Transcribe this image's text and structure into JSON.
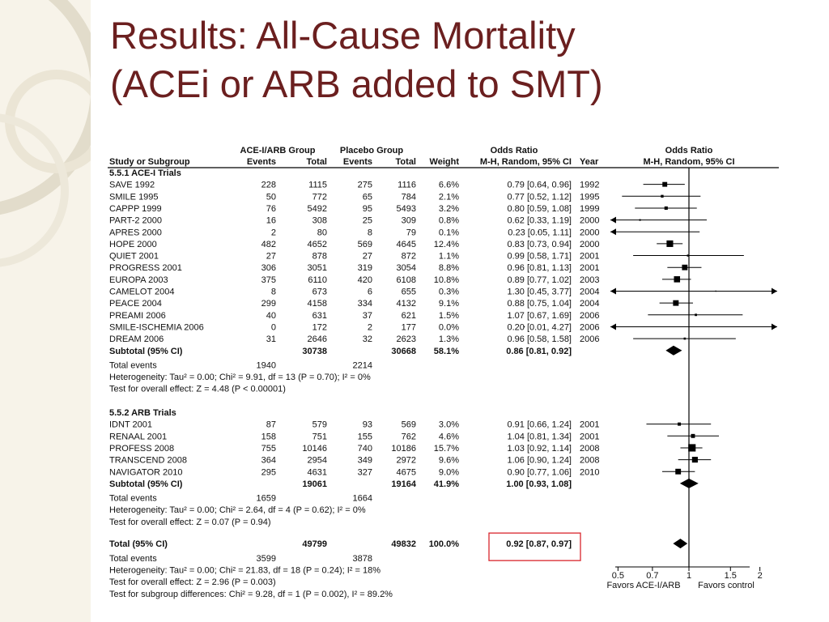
{
  "slide": {
    "title_line1": "Results: All-Cause Mortality",
    "title_line2": "(ACEi or ARB added to SMT)"
  },
  "colors": {
    "title": "#6b1f1f",
    "sidebar": "#f7f3e9",
    "deco_ring": "#e2dccb",
    "highlight_box": "#d9262c"
  },
  "headers": {
    "group1": "ACE-I/ARB Group",
    "group2": "Placebo Group",
    "or_col": "Odds Ratio",
    "plot_col": "Odds Ratio",
    "study": "Study or Subgroup",
    "events1": "Events",
    "total1": "Total",
    "events2": "Events",
    "total2": "Total",
    "weight": "Weight",
    "method": "M-H, Random, 95% CI",
    "year": "Year",
    "plot_method": "M-H, Random, 95% CI"
  },
  "chart_data": {
    "type": "forest",
    "axis": {
      "scale": "log",
      "xlim": [
        0.4,
        2.2
      ],
      "ticks": [
        "0.5",
        "0.7",
        "1",
        "1.5",
        "2"
      ],
      "reference_line": 1
    },
    "favors_left": "Favors ACE-I/ARB",
    "favors_right": "Favors control",
    "subgroups": [
      {
        "label": "5.5.1 ACE-I Trials",
        "studies": [
          {
            "name": "SAVE 1992",
            "e1": "228",
            "t1": "1115",
            "e2": "275",
            "t2": "1116",
            "weight": "6.6%",
            "ci": "0.79 [0.64, 0.96]",
            "year": "1992",
            "or": 0.79,
            "lo": 0.64,
            "hi": 0.96,
            "w": 6.6
          },
          {
            "name": "SMILE 1995",
            "e1": "50",
            "t1": "772",
            "e2": "65",
            "t2": "784",
            "weight": "2.1%",
            "ci": "0.77 [0.52, 1.12]",
            "year": "1995",
            "or": 0.77,
            "lo": 0.52,
            "hi": 1.12,
            "w": 2.1
          },
          {
            "name": "CAPPP 1999",
            "e1": "76",
            "t1": "5492",
            "e2": "95",
            "t2": "5493",
            "weight": "3.2%",
            "ci": "0.80 [0.59, 1.08]",
            "year": "1999",
            "or": 0.8,
            "lo": 0.59,
            "hi": 1.08,
            "w": 3.2
          },
          {
            "name": "PART-2 2000",
            "e1": "16",
            "t1": "308",
            "e2": "25",
            "t2": "309",
            "weight": "0.8%",
            "ci": "0.62 [0.33, 1.19]",
            "year": "2000",
            "or": 0.62,
            "lo": 0.33,
            "hi": 1.19,
            "w": 0.8
          },
          {
            "name": "APRES 2000",
            "e1": "2",
            "t1": "80",
            "e2": "8",
            "t2": "79",
            "weight": "0.1%",
            "ci": "0.23 [0.05, 1.11]",
            "year": "2000",
            "or": 0.23,
            "lo": 0.05,
            "hi": 1.11,
            "w": 0.1
          },
          {
            "name": "HOPE 2000",
            "e1": "482",
            "t1": "4652",
            "e2": "569",
            "t2": "4645",
            "weight": "12.4%",
            "ci": "0.83 [0.73, 0.94]",
            "year": "2000",
            "or": 0.83,
            "lo": 0.73,
            "hi": 0.94,
            "w": 12.4
          },
          {
            "name": "QUIET 2001",
            "e1": "27",
            "t1": "878",
            "e2": "27",
            "t2": "872",
            "weight": "1.1%",
            "ci": "0.99 [0.58, 1.71]",
            "year": "2001",
            "or": 0.99,
            "lo": 0.58,
            "hi": 1.71,
            "w": 1.1
          },
          {
            "name": "PROGRESS 2001",
            "e1": "306",
            "t1": "3051",
            "e2": "319",
            "t2": "3054",
            "weight": "8.8%",
            "ci": "0.96 [0.81, 1.13]",
            "year": "2001",
            "or": 0.96,
            "lo": 0.81,
            "hi": 1.13,
            "w": 8.8
          },
          {
            "name": "EUROPA 2003",
            "e1": "375",
            "t1": "6110",
            "e2": "420",
            "t2": "6108",
            "weight": "10.8%",
            "ci": "0.89 [0.77, 1.02]",
            "year": "2003",
            "or": 0.89,
            "lo": 0.77,
            "hi": 1.02,
            "w": 10.8
          },
          {
            "name": "CAMELOT 2004",
            "e1": "8",
            "t1": "673",
            "e2": "6",
            "t2": "655",
            "weight": "0.3%",
            "ci": "1.30 [0.45, 3.77]",
            "year": "2004",
            "or": 1.3,
            "lo": 0.45,
            "hi": 3.77,
            "w": 0.3
          },
          {
            "name": "PEACE 2004",
            "e1": "299",
            "t1": "4158",
            "e2": "334",
            "t2": "4132",
            "weight": "9.1%",
            "ci": "0.88 [0.75, 1.04]",
            "year": "2004",
            "or": 0.88,
            "lo": 0.75,
            "hi": 1.04,
            "w": 9.1
          },
          {
            "name": "PREAMI 2006",
            "e1": "40",
            "t1": "631",
            "e2": "37",
            "t2": "621",
            "weight": "1.5%",
            "ci": "1.07 [0.67, 1.69]",
            "year": "2006",
            "or": 1.07,
            "lo": 0.67,
            "hi": 1.69,
            "w": 1.5
          },
          {
            "name": "SMILE-ISCHEMIA 2006",
            "e1": "0",
            "t1": "172",
            "e2": "2",
            "t2": "177",
            "weight": "0.0%",
            "ci": "0.20 [0.01, 4.27]",
            "year": "2006",
            "or": 0.2,
            "lo": 0.01,
            "hi": 4.27,
            "w": 0.0
          },
          {
            "name": "DREAM 2006",
            "e1": "31",
            "t1": "2646",
            "e2": "32",
            "t2": "2623",
            "weight": "1.3%",
            "ci": "0.96 [0.58, 1.58]",
            "year": "2006",
            "or": 0.96,
            "lo": 0.58,
            "hi": 1.58,
            "w": 1.3
          }
        ],
        "subtotal": {
          "label": "Subtotal (95% CI)",
          "t1": "30738",
          "t2": "30668",
          "weight": "58.1%",
          "ci": "0.86 [0.81, 0.92]",
          "or": 0.86,
          "lo": 0.81,
          "hi": 0.92
        },
        "events": {
          "label": "Total events",
          "e1": "1940",
          "e2": "2214"
        },
        "heterogeneity": "Heterogeneity: Tau² = 0.00; Chi² = 9.91, df = 13 (P = 0.70); I² = 0%",
        "overall": "Test for overall effect: Z = 4.48 (P < 0.00001)"
      },
      {
        "label": "5.5.2 ARB Trials",
        "studies": [
          {
            "name": "IDNT 2001",
            "e1": "87",
            "t1": "579",
            "e2": "93",
            "t2": "569",
            "weight": "3.0%",
            "ci": "0.91 [0.66, 1.24]",
            "year": "2001",
            "or": 0.91,
            "lo": 0.66,
            "hi": 1.24,
            "w": 3.0
          },
          {
            "name": "RENAAL 2001",
            "e1": "158",
            "t1": "751",
            "e2": "155",
            "t2": "762",
            "weight": "4.6%",
            "ci": "1.04 [0.81, 1.34]",
            "year": "2001",
            "or": 1.04,
            "lo": 0.81,
            "hi": 1.34,
            "w": 4.6
          },
          {
            "name": "PROFESS 2008",
            "e1": "755",
            "t1": "10146",
            "e2": "740",
            "t2": "10186",
            "weight": "15.7%",
            "ci": "1.03 [0.92, 1.14]",
            "year": "2008",
            "or": 1.03,
            "lo": 0.92,
            "hi": 1.14,
            "w": 15.7
          },
          {
            "name": "TRANSCEND 2008",
            "e1": "364",
            "t1": "2954",
            "e2": "349",
            "t2": "2972",
            "weight": "9.6%",
            "ci": "1.06 [0.90, 1.24]",
            "year": "2008",
            "or": 1.06,
            "lo": 0.9,
            "hi": 1.24,
            "w": 9.6
          },
          {
            "name": "NAVIGATOR 2010",
            "e1": "295",
            "t1": "4631",
            "e2": "327",
            "t2": "4675",
            "weight": "9.0%",
            "ci": "0.90 [0.77, 1.06]",
            "year": "2010",
            "or": 0.9,
            "lo": 0.77,
            "hi": 1.06,
            "w": 9.0
          }
        ],
        "subtotal": {
          "label": "Subtotal (95% CI)",
          "t1": "19061",
          "t2": "19164",
          "weight": "41.9%",
          "ci": "1.00 [0.93, 1.08]",
          "or": 1.0,
          "lo": 0.93,
          "hi": 1.08
        },
        "events": {
          "label": "Total events",
          "e1": "1659",
          "e2": "1664"
        },
        "heterogeneity": "Heterogeneity: Tau² = 0.00; Chi² = 2.64, df = 4 (P = 0.62); I² = 0%",
        "overall": "Test for overall effect: Z = 0.07 (P = 0.94)"
      }
    ],
    "total": {
      "label": "Total (95% CI)",
      "t1": "49799",
      "t2": "49832",
      "weight": "100.0%",
      "ci": "0.92 [0.87, 0.97]",
      "or": 0.92,
      "lo": 0.87,
      "hi": 0.97
    },
    "total_events": {
      "label": "Total events",
      "e1": "3599",
      "e2": "3878"
    },
    "total_heterogeneity": "Heterogeneity: Tau² = 0.00; Chi² = 21.83, df = 18 (P = 0.24); I² = 18%",
    "total_overall": "Test for overall effect: Z = 2.96 (P = 0.003)",
    "subgroup_diff": "Test for subgroup differences: Chi² = 9.28, df = 1 (P = 0.002), I² = 89.2%"
  }
}
